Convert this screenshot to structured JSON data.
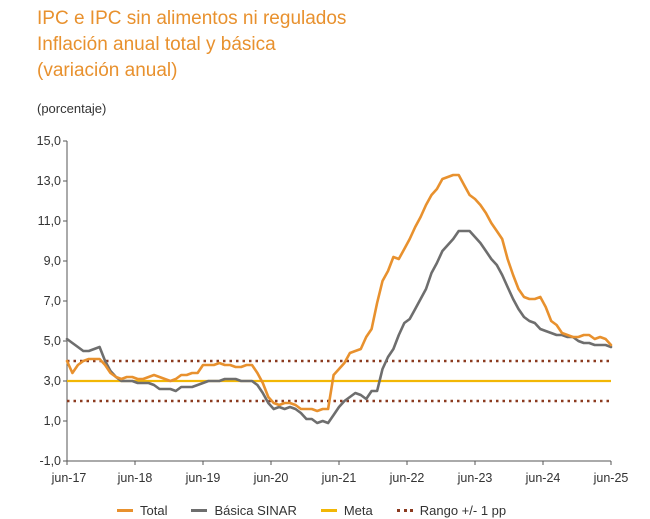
{
  "title": {
    "line1": "IPC e IPC sin alimentos ni regulados",
    "line2": "Inflación anual total y básica",
    "line3": "(variación anual)"
  },
  "unit_label": "(porcentaje)",
  "legend": {
    "total": "Total",
    "basica": "Básica SINAR",
    "meta": "Meta",
    "rango": "Rango +/- 1 pp"
  },
  "colors": {
    "total": "#E8912E",
    "basica": "#6E6E6E",
    "meta": "#F2B705",
    "rango": "#8B3A1F",
    "title": "#E8912E"
  },
  "chart_data": {
    "type": "line",
    "title": "Inflación anual total y básica",
    "ylabel": "(porcentaje)",
    "ylim": [
      -1.0,
      15.0
    ],
    "yticks": [
      "15,0",
      "13,0",
      "11,0",
      "9,0",
      "7,0",
      "5,0",
      "3,0",
      "1,0",
      "-1,0"
    ],
    "ytick_values": [
      15,
      13,
      11,
      9,
      7,
      5,
      3,
      1,
      -1
    ],
    "xticks": [
      "jun-17",
      "jun-18",
      "jun-19",
      "jun-20",
      "jun-21",
      "jun-22",
      "jun-23",
      "jun-24",
      "jun-25"
    ],
    "x_start": "2017-06",
    "x_end": "2025-06",
    "series": [
      {
        "name": "Total",
        "values": [
          4.0,
          3.4,
          3.8,
          4.0,
          4.1,
          4.1,
          4.1,
          3.8,
          3.4,
          3.2,
          3.1,
          3.2,
          3.2,
          3.1,
          3.1,
          3.2,
          3.3,
          3.2,
          3.1,
          3.0,
          3.1,
          3.3,
          3.3,
          3.4,
          3.4,
          3.8,
          3.8,
          3.8,
          3.9,
          3.8,
          3.8,
          3.7,
          3.7,
          3.8,
          3.8,
          3.4,
          2.9,
          2.2,
          1.9,
          1.8,
          1.9,
          1.9,
          1.8,
          1.6,
          1.6,
          1.6,
          1.5,
          1.6,
          1.6,
          3.3,
          3.6,
          3.9,
          4.4,
          4.5,
          4.6,
          5.2,
          5.6,
          6.9,
          8.0,
          8.5,
          9.2,
          9.1,
          9.6,
          10.1,
          10.7,
          11.2,
          11.8,
          12.3,
          12.6,
          13.1,
          13.2,
          13.3,
          13.3,
          12.8,
          12.3,
          12.1,
          11.8,
          11.4,
          10.9,
          10.5,
          10.1,
          9.1,
          8.3,
          7.6,
          7.2,
          7.1,
          7.1,
          7.2,
          6.7,
          6.0,
          5.8,
          5.4,
          5.3,
          5.2,
          5.2,
          5.3,
          5.3,
          5.1,
          5.2,
          5.1,
          4.8
        ],
        "color": "#E8912E"
      },
      {
        "name": "Básica SINAR",
        "values": [
          5.1,
          4.9,
          4.7,
          4.5,
          4.5,
          4.6,
          4.7,
          4.0,
          3.5,
          3.2,
          3.0,
          3.0,
          3.0,
          2.9,
          2.9,
          2.9,
          2.8,
          2.6,
          2.6,
          2.6,
          2.5,
          2.7,
          2.7,
          2.7,
          2.8,
          2.9,
          3.0,
          3.0,
          3.0,
          3.1,
          3.1,
          3.1,
          3.0,
          3.0,
          3.0,
          2.8,
          2.4,
          1.9,
          1.6,
          1.7,
          1.6,
          1.7,
          1.6,
          1.4,
          1.1,
          1.1,
          0.9,
          1.0,
          0.9,
          1.3,
          1.7,
          2.0,
          2.2,
          2.4,
          2.3,
          2.1,
          2.5,
          2.5,
          3.6,
          4.2,
          4.6,
          5.3,
          5.9,
          6.1,
          6.6,
          7.1,
          7.6,
          8.4,
          8.9,
          9.5,
          9.8,
          10.1,
          10.5,
          10.5,
          10.5,
          10.2,
          9.9,
          9.5,
          9.1,
          8.8,
          8.3,
          7.7,
          7.1,
          6.6,
          6.2,
          6.0,
          5.9,
          5.6,
          5.5,
          5.4,
          5.3,
          5.3,
          5.2,
          5.2,
          5.0,
          4.9,
          4.9,
          4.8,
          4.8,
          4.8,
          4.7
        ],
        "color": "#6E6E6E"
      },
      {
        "name": "Meta",
        "values": [
          3.0,
          3.0
        ],
        "color": "#F2B705"
      },
      {
        "name": "Rango +/- 1 pp",
        "upper": [
          4.0,
          4.0
        ],
        "lower": [
          2.0,
          2.0
        ],
        "color": "#8B3A1F"
      }
    ]
  }
}
